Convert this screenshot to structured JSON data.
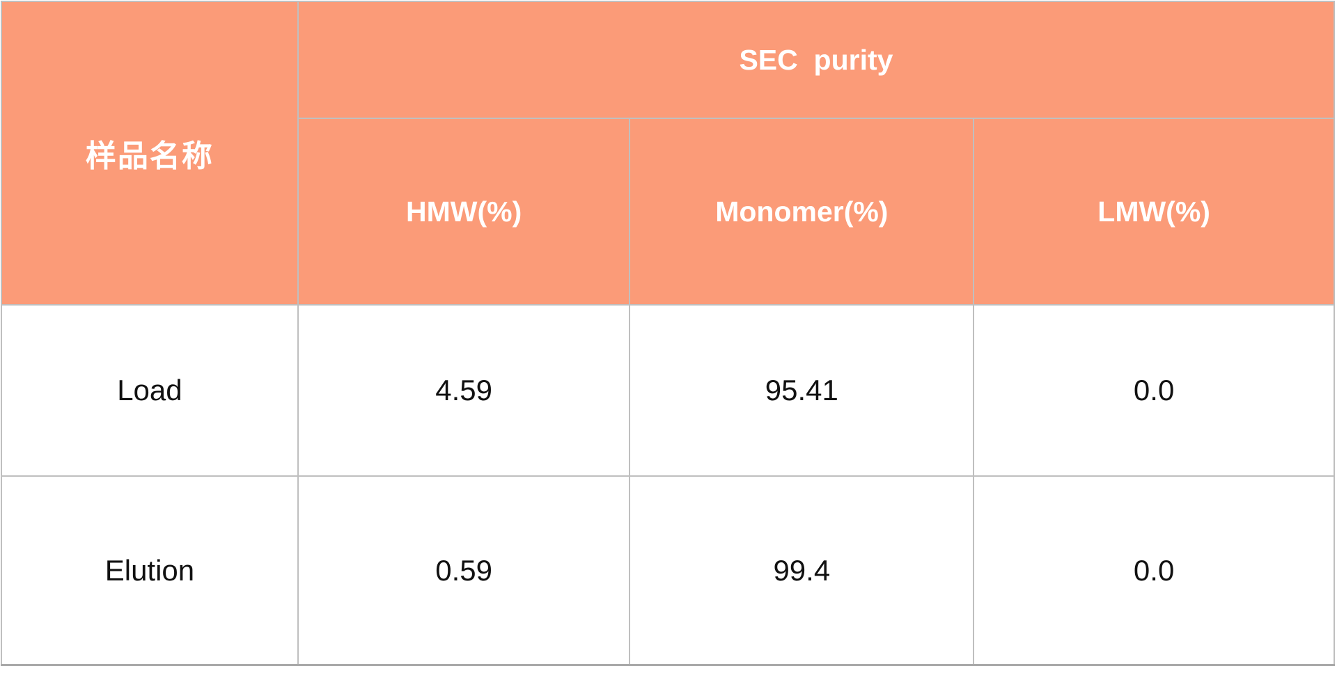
{
  "table": {
    "header": {
      "sample_name_label": "样品名称",
      "group_label": "SEC  purity",
      "columns": [
        {
          "label": "HMW(%)"
        },
        {
          "label": "Monomer(%)"
        },
        {
          "label": "LMW(%)"
        }
      ]
    },
    "rows": [
      {
        "name": "Load",
        "hmw": "4.59",
        "monomer": "95.41",
        "lmw": "0.0"
      },
      {
        "name": "Elution",
        "hmw": "0.59",
        "monomer": "99.4",
        "lmw": "0.0"
      }
    ],
    "colors": {
      "header_bg": "#FB9B78",
      "header_text": "#FFFFFF",
      "grid_border": "#BFBFBF",
      "body_text": "#111111"
    }
  },
  "chart_data": {
    "type": "table",
    "title": "SEC  purity",
    "row_header_label": "样品名称",
    "column_group": "SEC  purity",
    "columns": [
      "HMW(%)",
      "Monomer(%)",
      "LMW(%)"
    ],
    "rows": [
      {
        "sample": "Load",
        "values": [
          4.59,
          95.41,
          0.0
        ]
      },
      {
        "sample": "Elution",
        "values": [
          0.59,
          99.4,
          0.0
        ]
      }
    ]
  }
}
